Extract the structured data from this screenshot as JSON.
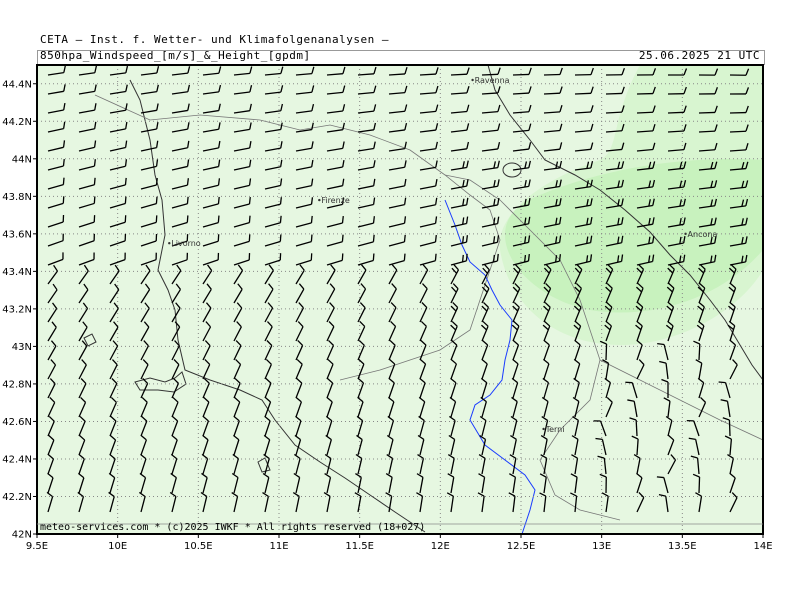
{
  "header": {
    "line1": "CETA — Inst. f. Wetter- und Klimafolgenanalysen —",
    "variable": "850hpa_Windspeed_[m/s]_&_Height_[gpdm]",
    "valid_time": "25.06.2025 21 UTC"
  },
  "footer": {
    "credit": "meteo-services.com * (c)2025 IWKF * All rights reserved (18+027)"
  },
  "axes": {
    "x_ticks": [
      "9.5E",
      "10E",
      "10.5E",
      "11E",
      "11.5E",
      "12E",
      "12.5E",
      "13E",
      "13.5E",
      "14E"
    ],
    "y_ticks": [
      "44.4N",
      "44.2N",
      "44N",
      "43.8N",
      "43.6N",
      "43.4N",
      "43.2N",
      "43N",
      "42.8N",
      "42.6N",
      "42.4N",
      "42.2N",
      "42N"
    ]
  },
  "cities": [
    {
      "name": "Ravenna",
      "lon": 12.2,
      "lat": 44.42
    },
    {
      "name": "Firenze",
      "lon": 11.25,
      "lat": 43.78
    },
    {
      "name": "Livorno",
      "lon": 10.32,
      "lat": 43.55
    },
    {
      "name": "Ancona",
      "lon": 13.52,
      "lat": 43.6
    },
    {
      "name": "Terni",
      "lon": 12.64,
      "lat": 42.56
    }
  ],
  "colors": {
    "background": "#e6f7e1",
    "wind_band": "#c8f2be",
    "wind_band_light": "#d8f5d0",
    "river": "#1a3cff",
    "coast": "#333333",
    "barb": "#000000"
  },
  "chart_data": {
    "type": "map",
    "projection": "lon-lat",
    "lon_range": [
      9.5,
      14.0
    ],
    "lat_range": [
      42.0,
      44.5
    ],
    "grid": "dotted, every 0.5° lon and 0.2° lat"
  }
}
